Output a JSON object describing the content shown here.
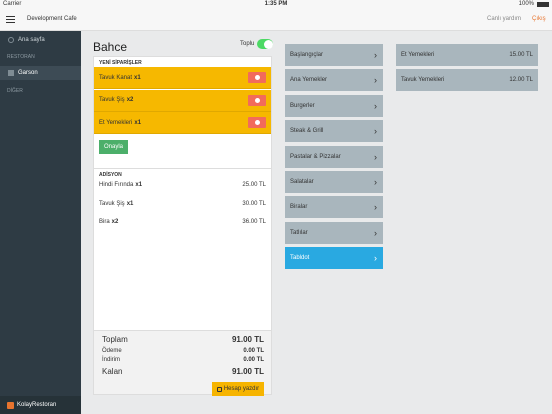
{
  "status_bar": {
    "carrier": "Carrier",
    "time": "1:35 PM",
    "battery": "100%"
  },
  "top_bar": {
    "title": "Development Cafe",
    "help": "Canlı yardım",
    "logout": "Çıkış"
  },
  "sidebar": {
    "home": "Ana sayfa",
    "section_restaurant": "RESTORAN",
    "waiter": "Garson",
    "section_other": "DİĞER",
    "brand": "KolayRestoran"
  },
  "table": {
    "name": "Bahce",
    "bulk_label": "Toplu",
    "new_orders": {
      "header": "YENİ SİPARİŞLER",
      "items": [
        {
          "name": "Tavuk Kanat",
          "qty": "x1"
        },
        {
          "name": "Tavuk Şiş",
          "qty": "x2"
        },
        {
          "name": "Et Yemekleri",
          "qty": "x1"
        }
      ],
      "confirm": "Onayla"
    },
    "bill": {
      "header": "ADİSYON",
      "items": [
        {
          "name": "Hindi Fırında",
          "qty": "x1",
          "price": "25.00 TL"
        },
        {
          "name": "Tavuk Şiş",
          "qty": "x1",
          "price": "30.00 TL"
        },
        {
          "name": "Bira",
          "qty": "x2",
          "price": "36.00 TL"
        }
      ]
    },
    "summary": [
      {
        "label": "Toplam",
        "value": "91.00 TL"
      },
      {
        "label": "Ödeme",
        "value": "0.00 TL"
      },
      {
        "label": "İndirim",
        "value": "0.00 TL"
      },
      {
        "label": "Kalan",
        "value": "91.00 TL"
      }
    ],
    "print": "Hesap yazdır"
  },
  "categories": [
    "Başlangıçlar",
    "Ana Yemekler",
    "Burgerler",
    "Steak & Grill",
    "Pastalar & Pizzalar",
    "Salatalar",
    "Biralar",
    "Tatlılar",
    "Tabldot"
  ],
  "products": [
    {
      "name": "Et Yemekleri",
      "price": "15.00 TL"
    },
    {
      "name": "Tavuk Yemekleri",
      "price": "12.00 TL"
    }
  ]
}
